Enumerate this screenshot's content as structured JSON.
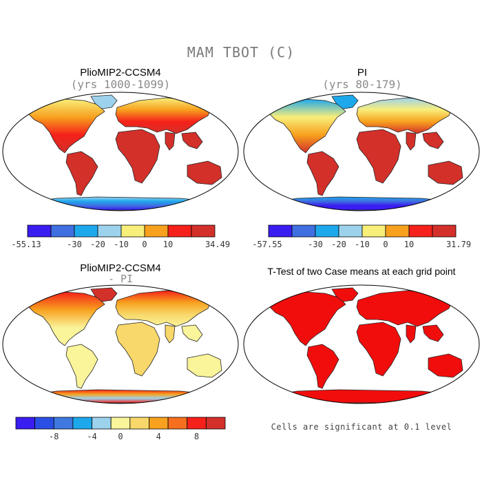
{
  "title": "MAM TBOT (C)",
  "panels": [
    {
      "id": "pliomip",
      "title": "PlioMIP2-CCSM4",
      "subtitle": "(yrs 1000-1099)",
      "scheme": "abs"
    },
    {
      "id": "pi",
      "title": "PI",
      "subtitle": "(yrs 80-179)",
      "scheme": "abs_pi"
    },
    {
      "id": "diff",
      "title": "PlioMIP2-CCSM4",
      "subtitle": "- PI",
      "scheme": "diff"
    },
    {
      "id": "ttest",
      "title": "T-Test of two Case means at each grid point",
      "subtitle": "",
      "scheme": "sig"
    }
  ],
  "colorbars": {
    "pliomip": {
      "colors": [
        "#3a1df0",
        "#3f6fe0",
        "#1ea8ec",
        "#9cd2ec",
        "#f8ee7a",
        "#f7a11e",
        "#f5211a",
        "#d3302a"
      ],
      "labels": [
        "-55.13",
        "-30",
        "-20",
        "-10",
        "0",
        "10",
        "34.49"
      ]
    },
    "pi": {
      "colors": [
        "#3a1df0",
        "#3f6fe0",
        "#1ea8ec",
        "#9cd2ec",
        "#f8ee7a",
        "#f7a11e",
        "#f5211a",
        "#d3302a"
      ],
      "labels": [
        "-57.55",
        "-30",
        "-20",
        "-10",
        "0",
        "10",
        "31.79"
      ]
    },
    "diff": {
      "colors": [
        "#3a1df0",
        "#2a4fe4",
        "#3f78e0",
        "#1ea8ec",
        "#9cd2ec",
        "#faf49a",
        "#f8d86a",
        "#f7a11e",
        "#f56f1e",
        "#f5211a",
        "#d3302a"
      ],
      "labels": [
        "-8",
        "-4",
        "0",
        "4",
        "8"
      ]
    }
  },
  "note": "Cells are significant at 0.1 level"
}
